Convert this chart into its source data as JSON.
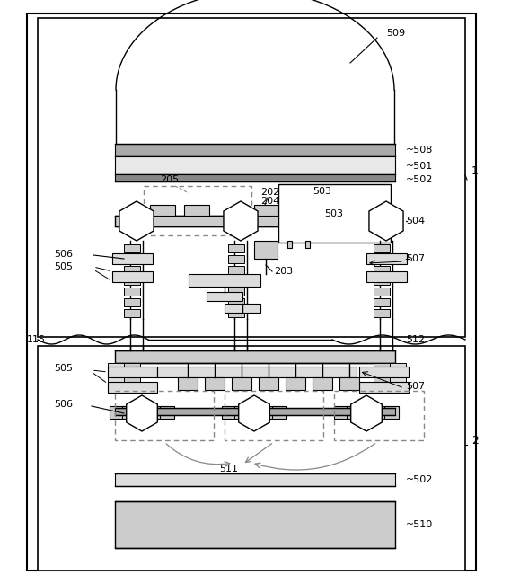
{
  "bg_color": "#ffffff",
  "lc": "#000000",
  "dc": "#888888",
  "fig_w": 5.69,
  "fig_h": 6.5,
  "lw": 1.0
}
